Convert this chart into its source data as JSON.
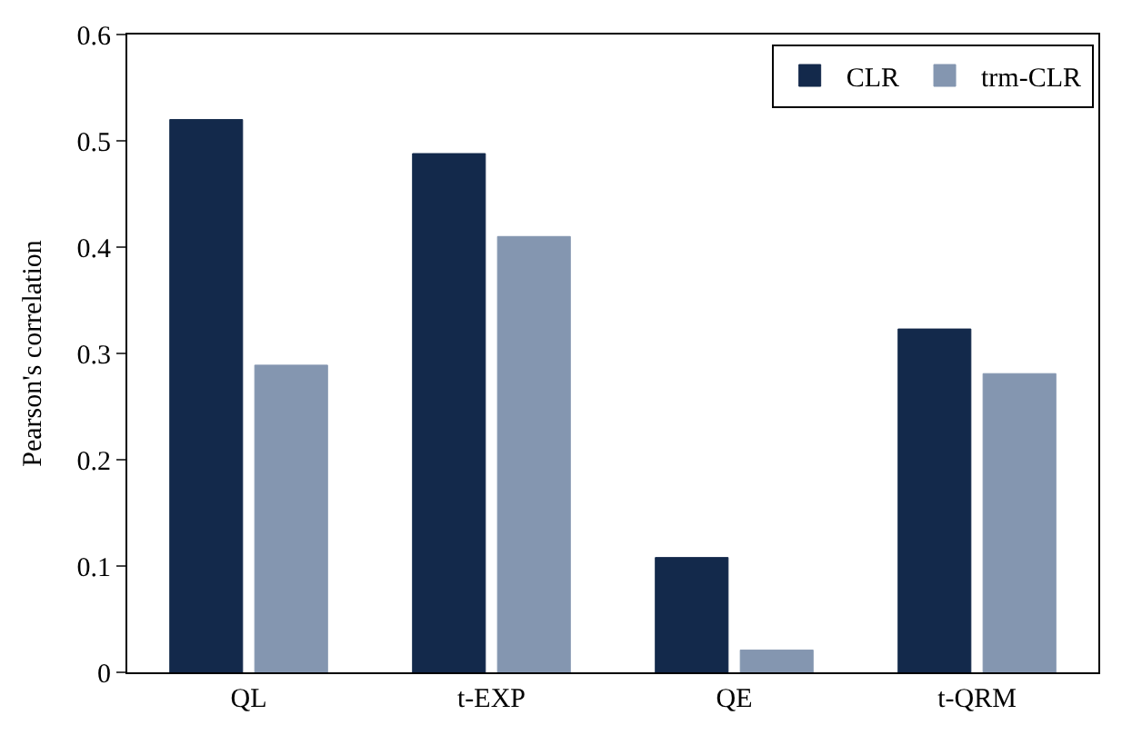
{
  "chart_data": {
    "type": "bar",
    "ylabel": "Pearson's correlation",
    "categories": [
      "QL",
      "t-EXP",
      "QE",
      "t-QRM"
    ],
    "series": [
      {
        "name": "CLR",
        "color": "#13294b",
        "values": [
          0.52,
          0.488,
          0.108,
          0.323
        ]
      },
      {
        "name": "trm-CLR",
        "color": "#8496b0",
        "values": [
          0.289,
          0.41,
          0.021,
          0.281
        ]
      }
    ],
    "ylim": [
      0,
      0.6
    ],
    "yticks": [
      0,
      0.1,
      0.2,
      0.3,
      0.4,
      0.5,
      0.6
    ],
    "grid": false,
    "legend": "top right"
  }
}
